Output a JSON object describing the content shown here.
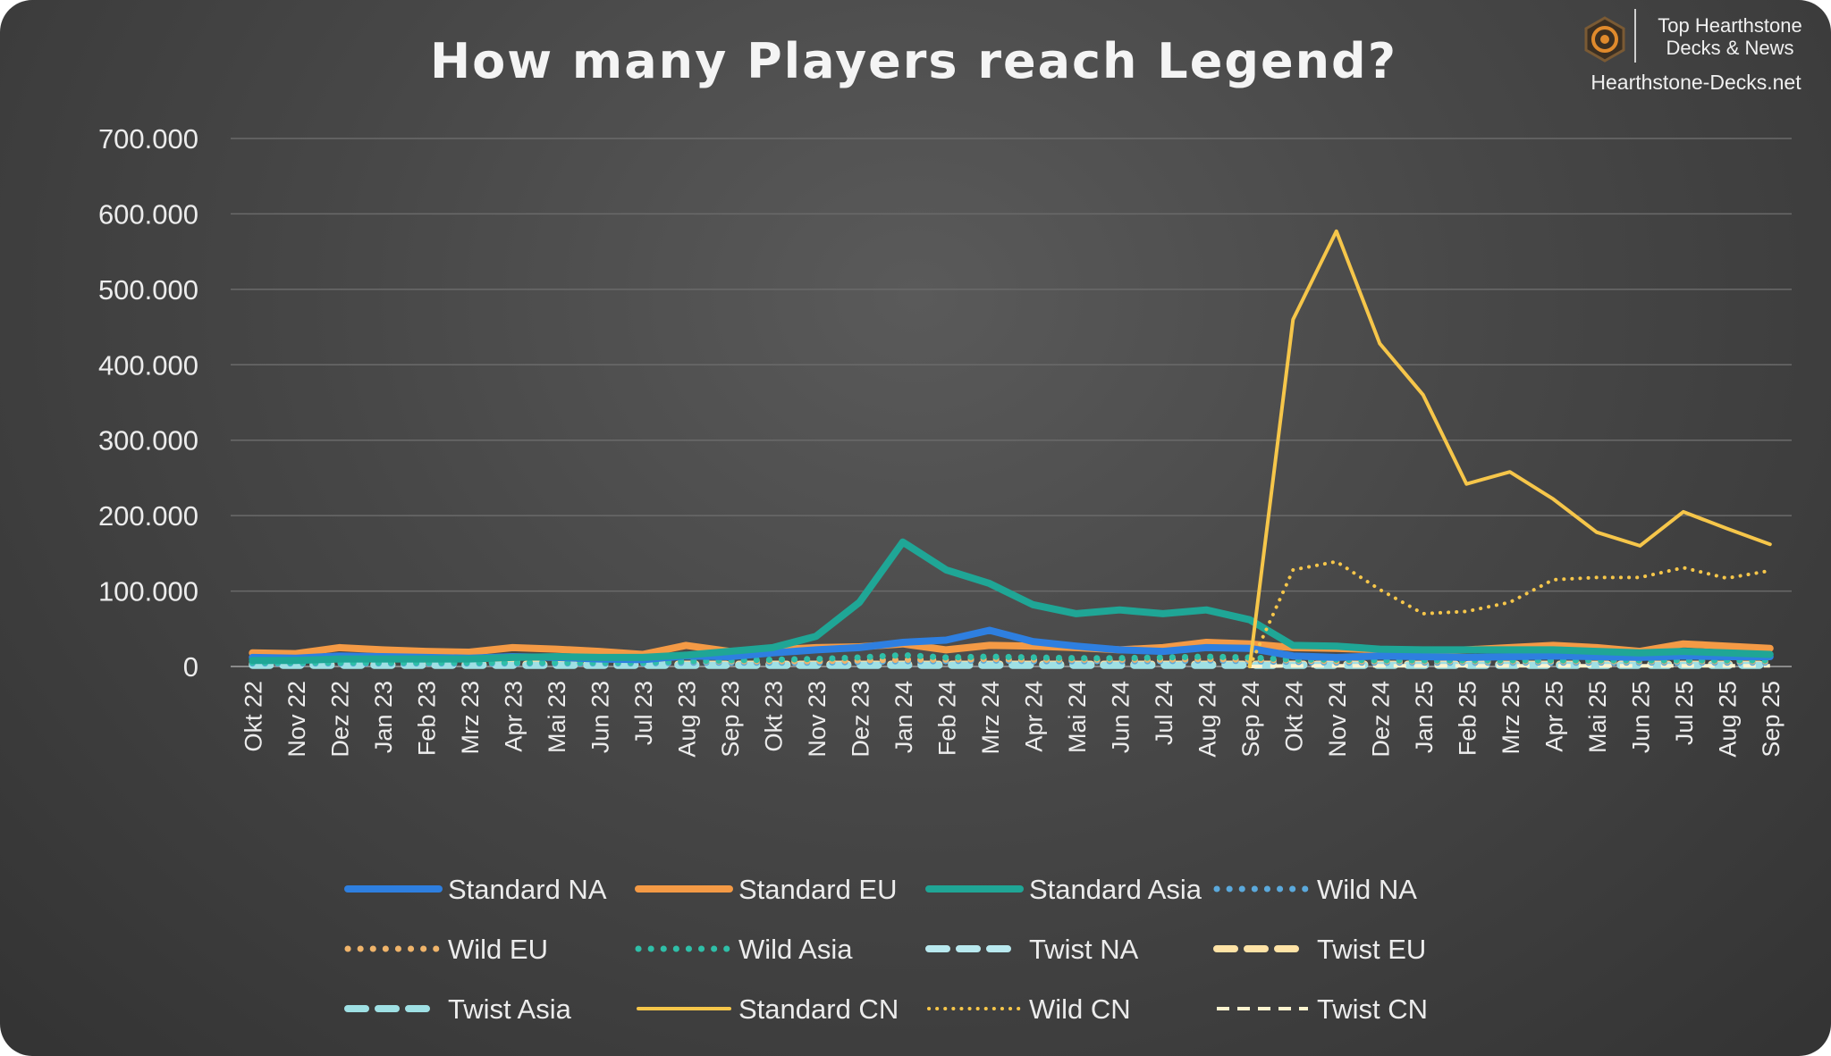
{
  "brand": {
    "name_line1": "Top Hearthstone",
    "name_line2": "Decks & News",
    "url": "Hearthstone-Decks.net"
  },
  "chart_data": {
    "type": "line",
    "title": "How many Players reach Legend?",
    "xlabel": "",
    "ylabel": "",
    "ylim": [
      0,
      700000
    ],
    "yticks": [
      0,
      100000,
      200000,
      300000,
      400000,
      500000,
      600000,
      700000
    ],
    "ytick_labels": [
      "0",
      "100.000",
      "200.000",
      "300.000",
      "400.000",
      "500.000",
      "600.000",
      "700.000"
    ],
    "grid": "horizontal",
    "legend_position": "bottom",
    "categories": [
      "Okt 22",
      "Nov 22",
      "Dez 22",
      "Jan 23",
      "Feb 23",
      "Mrz 23",
      "Apr 23",
      "Mai 23",
      "Jun 23",
      "Jul 23",
      "Aug 23",
      "Sep 23",
      "Okt 23",
      "Nov 23",
      "Dez 23",
      "Jan 24",
      "Feb 24",
      "Mrz 24",
      "Apr 24",
      "Mai 24",
      "Jun 24",
      "Jul 24",
      "Aug 24",
      "Sep 24",
      "Okt 24",
      "Nov 24",
      "Dez 24",
      "Jan 25",
      "Feb 25",
      "Mrz 25",
      "Apr 25",
      "Mai 25",
      "Jun 25",
      "Jul 25",
      "Aug 25",
      "Sep 25"
    ],
    "series": [
      {
        "name": "Standard NA",
        "color": "#2e7fe0",
        "style": "solid-thick",
        "values": [
          12000,
          11000,
          14000,
          13000,
          12000,
          11000,
          13000,
          12000,
          10000,
          9000,
          14000,
          13000,
          18000,
          22000,
          25000,
          32000,
          35000,
          48000,
          33000,
          27000,
          22000,
          20000,
          25000,
          24000,
          14000,
          12000,
          14000,
          13000,
          12000,
          13000,
          14000,
          13000,
          12000,
          14000,
          13000,
          13000
        ]
      },
      {
        "name": "Standard EU",
        "color": "#f49a45",
        "style": "solid-thick",
        "values": [
          18000,
          17000,
          25000,
          22000,
          20000,
          19000,
          25000,
          23000,
          20000,
          16000,
          28000,
          20000,
          22000,
          25000,
          26000,
          30000,
          22000,
          28000,
          27000,
          25000,
          22000,
          25000,
          32000,
          30000,
          25000,
          24000,
          22000,
          20000,
          22000,
          25000,
          28000,
          25000,
          20000,
          30000,
          27000,
          24000
        ]
      },
      {
        "name": "Standard Asia",
        "color": "#1fa696",
        "style": "solid-thick",
        "values": [
          8000,
          8000,
          10000,
          10000,
          10000,
          10000,
          12000,
          13000,
          12000,
          12000,
          15000,
          20000,
          25000,
          40000,
          85000,
          165000,
          128000,
          110000,
          82000,
          70000,
          75000,
          70000,
          75000,
          62000,
          28000,
          27000,
          23000,
          22000,
          22000,
          22000,
          22000,
          20000,
          18000,
          20000,
          18000,
          16000
        ]
      },
      {
        "name": "Wild NA",
        "color": "#5ba9dc",
        "style": "dots-thick",
        "values": [
          4000,
          4000,
          4000,
          4000,
          4000,
          4000,
          4000,
          4000,
          4000,
          4000,
          5000,
          5000,
          5000,
          5000,
          6000,
          7000,
          7000,
          8000,
          7000,
          7000,
          7000,
          7000,
          8000,
          7000,
          6000,
          5000,
          5000,
          5000,
          5000,
          5000,
          5000,
          5000,
          5000,
          5000,
          5000,
          5000
        ]
      },
      {
        "name": "Wild EU",
        "color": "#f0b46a",
        "style": "dots-thick",
        "values": [
          6000,
          6000,
          6000,
          6000,
          6000,
          6000,
          6000,
          6000,
          6000,
          6000,
          7000,
          7000,
          7000,
          7000,
          8000,
          9000,
          9000,
          10000,
          9000,
          9000,
          9000,
          9000,
          10000,
          9000,
          8000,
          7000,
          7000,
          7000,
          7000,
          7000,
          7000,
          7000,
          7000,
          7000,
          7000,
          7000
        ]
      },
      {
        "name": "Wild Asia",
        "color": "#2fbfa8",
        "style": "dots-thick",
        "values": [
          5000,
          5000,
          5000,
          5000,
          5000,
          5000,
          5000,
          5000,
          5000,
          5000,
          7000,
          8000,
          9000,
          10000,
          12000,
          15000,
          12000,
          13000,
          12000,
          11000,
          11000,
          12000,
          13000,
          12000,
          9000,
          9000,
          8000,
          8000,
          8000,
          8000,
          8000,
          8000,
          8000,
          8000,
          8000,
          8000
        ]
      },
      {
        "name": "Twist NA",
        "color": "#b9e9ef",
        "style": "dash-thick",
        "values": [
          2000,
          2000,
          2000,
          2000,
          2000,
          2000,
          2000,
          2000,
          2000,
          2000,
          2000,
          2000,
          2000,
          2000,
          2000,
          2000,
          2000,
          2000,
          2000,
          2000,
          2000,
          2000,
          2000,
          2000,
          2000,
          2000,
          2000,
          2000,
          2000,
          2000,
          2000,
          2000,
          2000,
          2000,
          2000,
          2000
        ]
      },
      {
        "name": "Twist EU",
        "color": "#ffe3a6",
        "style": "dash-thick",
        "values": [
          3000,
          3000,
          3000,
          3000,
          3000,
          3000,
          3000,
          3000,
          3000,
          3000,
          3000,
          3000,
          3000,
          3000,
          3000,
          3000,
          3000,
          3000,
          3000,
          3000,
          3000,
          3000,
          3000,
          3000,
          3000,
          3000,
          3000,
          3000,
          3000,
          3000,
          3000,
          3000,
          3000,
          3000,
          3000,
          3000
        ]
      },
      {
        "name": "Twist Asia",
        "color": "#9fe0e4",
        "style": "dash-thick",
        "values": [
          1500,
          1500,
          1500,
          1500,
          1500,
          1500,
          1500,
          1500,
          1500,
          1500,
          1500,
          1500,
          1500,
          1500,
          1500,
          1500,
          1500,
          1500,
          1500,
          1500,
          1500,
          1500,
          1500,
          1500,
          1500,
          1500,
          1500,
          1500,
          1500,
          1500,
          1500,
          1500,
          1500,
          1500,
          1500,
          1500
        ]
      },
      {
        "name": "Standard CN",
        "color": "#f6c64a",
        "style": "solid-thin",
        "values": [
          null,
          null,
          null,
          null,
          null,
          null,
          null,
          null,
          null,
          null,
          null,
          null,
          null,
          null,
          null,
          null,
          null,
          null,
          null,
          null,
          null,
          null,
          null,
          0,
          460000,
          577000,
          428000,
          360000,
          242000,
          258000,
          222000,
          178000,
          160000,
          205000,
          183000,
          162000
        ]
      },
      {
        "name": "Wild CN",
        "color": "#f6c64a",
        "style": "dots-thin",
        "values": [
          null,
          null,
          null,
          null,
          null,
          null,
          null,
          null,
          null,
          null,
          null,
          null,
          null,
          null,
          null,
          null,
          null,
          null,
          null,
          null,
          null,
          null,
          null,
          0,
          128000,
          139000,
          102000,
          70000,
          73000,
          85000,
          115000,
          118000,
          118000,
          131000,
          117000,
          127000
        ]
      },
      {
        "name": "Twist CN",
        "color": "#fff3cf",
        "style": "dash-thin",
        "values": [
          null,
          null,
          null,
          null,
          null,
          null,
          null,
          null,
          null,
          null,
          null,
          null,
          null,
          null,
          null,
          null,
          null,
          null,
          null,
          null,
          null,
          null,
          null,
          0,
          1000,
          1000,
          1000,
          1000,
          1000,
          1000,
          1000,
          1000,
          1000,
          1000,
          1000,
          1000
        ]
      }
    ],
    "series_draw_order": [
      "Twist NA",
      "Twist EU",
      "Twist Asia",
      "Twist CN",
      "Wild NA",
      "Wild EU",
      "Wild Asia",
      "Standard EU",
      "Standard NA",
      "Standard Asia",
      "Wild CN",
      "Standard CN"
    ]
  }
}
